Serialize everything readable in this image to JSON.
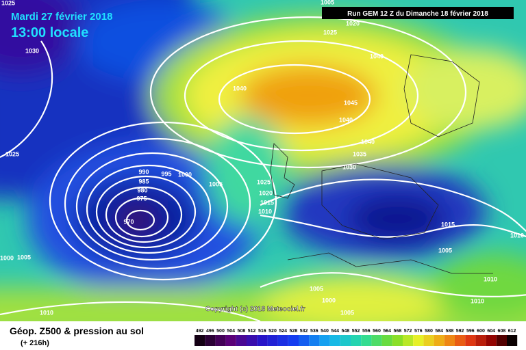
{
  "header": {
    "date": "Mardi 27 février 2018",
    "time": "13:00 locale",
    "run": "Run GEM 12 Z du Dimanche 18 février 2018"
  },
  "isobar_labels": [
    1025,
    1020,
    1025,
    1030,
    1040,
    1040,
    1045,
    1040,
    1025,
    1040,
    1035,
    1030,
    990,
    995,
    1000,
    985,
    980,
    975,
    1005,
    1025,
    1020,
    1015,
    1010,
    970,
    1015,
    1010,
    1005,
    1000,
    1005,
    1010,
    1005,
    1005,
    1000,
    1010,
    1005,
    1010
  ],
  "copyright": "Copyright (c) 2018 Meteociel.fr",
  "footer": {
    "title": "Géop. Z500 & pression au sol",
    "lead": "(+ 216h)"
  },
  "scale": {
    "labels": [
      492,
      496,
      500,
      504,
      508,
      512,
      516,
      520,
      524,
      528,
      532,
      536,
      540,
      544,
      548,
      552,
      556,
      560,
      564,
      568,
      572,
      576,
      580,
      584,
      588,
      592,
      596,
      600,
      604,
      608,
      612
    ]
  }
}
